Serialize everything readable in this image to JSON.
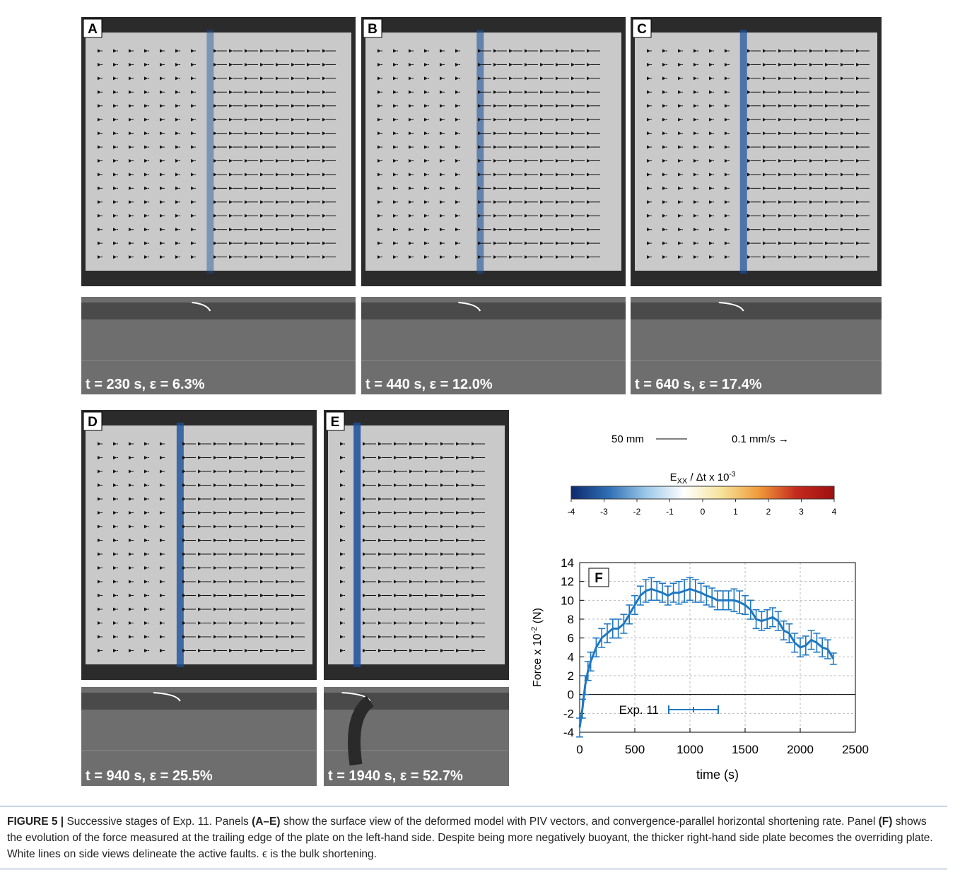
{
  "panels": [
    {
      "label": "A",
      "caption": "t = 230 s, ε = 6.3%"
    },
    {
      "label": "B",
      "caption": "t = 440 s, ε = 12.0%"
    },
    {
      "label": "C",
      "caption": "t = 640 s, ε = 17.4%"
    },
    {
      "label": "D",
      "caption": "t = 940 s, ε = 25.5%"
    },
    {
      "label": "E",
      "caption": "t = 1940 s, ε = 52.7%"
    }
  ],
  "scale": {
    "length": "50 mm",
    "velocity": "0.1 mm/s →"
  },
  "colorbar": {
    "title_main": "E",
    "title_sub": "XX",
    "title_rest": " / Δt x 10",
    "title_sup": "-3",
    "lim": [
      -4,
      4
    ],
    "ticks": [
      -4,
      -3,
      -2,
      -1,
      0,
      1,
      2,
      3,
      4
    ],
    "colors": [
      "#0d2a6e",
      "#2f6fb5",
      "#9cc9e8",
      "#ffffff",
      "#f5e39a",
      "#ef9a3a",
      "#c42a1e",
      "#9e1010"
    ]
  },
  "chart_data": {
    "type": "line",
    "label": "F",
    "ylabel_main": "Force x 10",
    "ylabel_sup": "-2",
    "ylabel_rest": " (N)",
    "xlabel": "time (s)",
    "x": [
      0,
      25,
      50,
      75,
      100,
      150,
      200,
      250,
      300,
      350,
      400,
      450,
      500,
      550,
      600,
      650,
      700,
      750,
      800,
      850,
      900,
      950,
      1000,
      1050,
      1100,
      1150,
      1200,
      1250,
      1300,
      1350,
      1400,
      1450,
      1500,
      1550,
      1600,
      1650,
      1700,
      1750,
      1800,
      1850,
      1900,
      1950,
      2000,
      2050,
      2100,
      2150,
      2200,
      2250,
      2300
    ],
    "series": [
      {
        "name": "Exp. 11",
        "color": "#1f78c1",
        "values": [
          -3.5,
          -1.5,
          1,
          2.5,
          3.5,
          5,
          6,
          6.5,
          7,
          7,
          7.5,
          8.5,
          9.5,
          10.5,
          11,
          11.2,
          11,
          10.8,
          10.5,
          10.8,
          10.8,
          11,
          11.2,
          11,
          10.8,
          10.5,
          10.3,
          10,
          10,
          10,
          10,
          9.8,
          9.5,
          9,
          8,
          7.8,
          8,
          8.2,
          7.8,
          6.8,
          6.5,
          5.5,
          5,
          5.2,
          5.8,
          5.5,
          5,
          4.8,
          3.8
        ],
        "errors": [
          1,
          1,
          1,
          1,
          1,
          1,
          1,
          1,
          1,
          1,
          1,
          1,
          1,
          1,
          1.2,
          1.2,
          1,
          1,
          1,
          1,
          1.2,
          1.2,
          1.2,
          1.2,
          1,
          1,
          1,
          1,
          1,
          1,
          1.2,
          1.2,
          1,
          1,
          1,
          1,
          1,
          1,
          1,
          1,
          1,
          1,
          1,
          1,
          1,
          1,
          1,
          1,
          0.6
        ]
      }
    ],
    "xlim": [
      0,
      2500
    ],
    "ylim": [
      -4,
      14
    ],
    "xticks": [
      0,
      500,
      1000,
      1500,
      2000,
      2500
    ],
    "yticks": [
      -4,
      -2,
      0,
      2,
      4,
      6,
      8,
      10,
      12,
      14
    ],
    "grid": true
  },
  "caption": [
    {
      "text": "FIGURE 5 |",
      "bold": true
    },
    {
      "text": " Successive stages of Exp. 11. Panels ",
      "bold": false
    },
    {
      "text": "(A–E)",
      "bold": true
    },
    {
      "text": " show the surface view of the deformed model with PIV vectors, and convergence-parallel horizontal shortening rate. Panel ",
      "bold": false
    },
    {
      "text": "(F)",
      "bold": true
    },
    {
      "text": " shows the evolution of the force measured at the trailing edge of the plate on the left-hand side. Despite being more negatively buoyant, the thicker right-hand side plate becomes the overriding plate. White lines on side views delineate the active faults. ϵ is the bulk shortening.",
      "bold": false
    }
  ]
}
